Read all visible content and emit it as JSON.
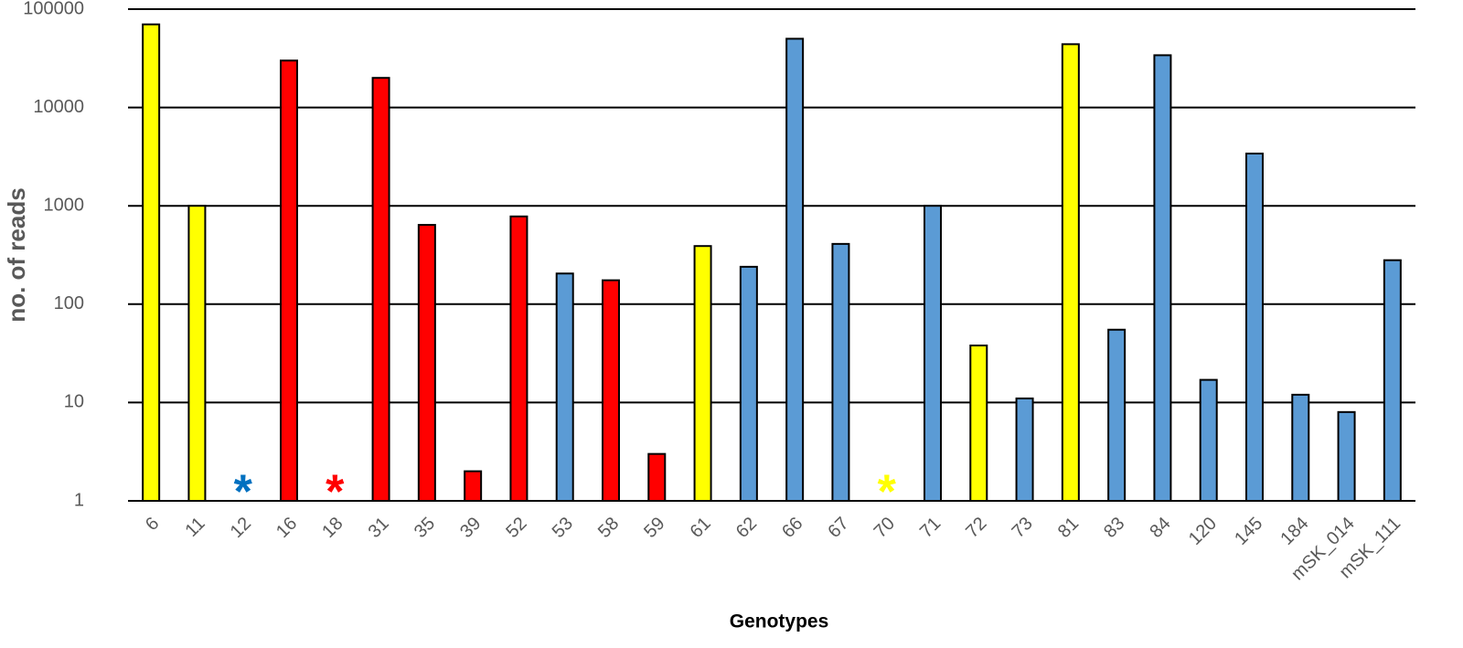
{
  "chart_data": {
    "type": "bar",
    "y_label": "no. of reads",
    "x_label": "Genotypes",
    "log_scale": true,
    "grid": true,
    "missing_label": "*",
    "categories": [
      "6",
      "11",
      "12",
      "16",
      "18",
      "31",
      "35",
      "39",
      "52",
      "53",
      "58",
      "59",
      "61",
      "62",
      "66",
      "67",
      "70",
      "71",
      "72",
      "73",
      "81",
      "83",
      "84",
      "120",
      "145",
      "184",
      "mSK_014",
      "mSK_111"
    ],
    "values": [
      70000,
      1000,
      null,
      30000,
      null,
      20000,
      640,
      2,
      780,
      205,
      175,
      3,
      390,
      240,
      50000,
      410,
      null,
      1000,
      38,
      11,
      44000,
      55,
      34000,
      17,
      3400,
      12,
      8,
      280
    ],
    "colors": [
      "#ffff00",
      "#ffff00",
      "#0070c0",
      "#ff0000",
      "#ff0000",
      "#ff0000",
      "#ff0000",
      "#ff0000",
      "#ff0000",
      "#5b9bd5",
      "#ff0000",
      "#ff0000",
      "#ffff00",
      "#5b9bd5",
      "#5b9bd5",
      "#5b9bd5",
      "#ffff00",
      "#5b9bd5",
      "#ffff00",
      "#5b9bd5",
      "#ffff00",
      "#5b9bd5",
      "#5b9bd5",
      "#5b9bd5",
      "#5b9bd5",
      "#5b9bd5",
      "#5b9bd5",
      "#5b9bd5"
    ],
    "ylim": [
      1,
      100000
    ],
    "yticks": [
      1,
      10,
      100,
      1000,
      10000,
      100000
    ]
  }
}
